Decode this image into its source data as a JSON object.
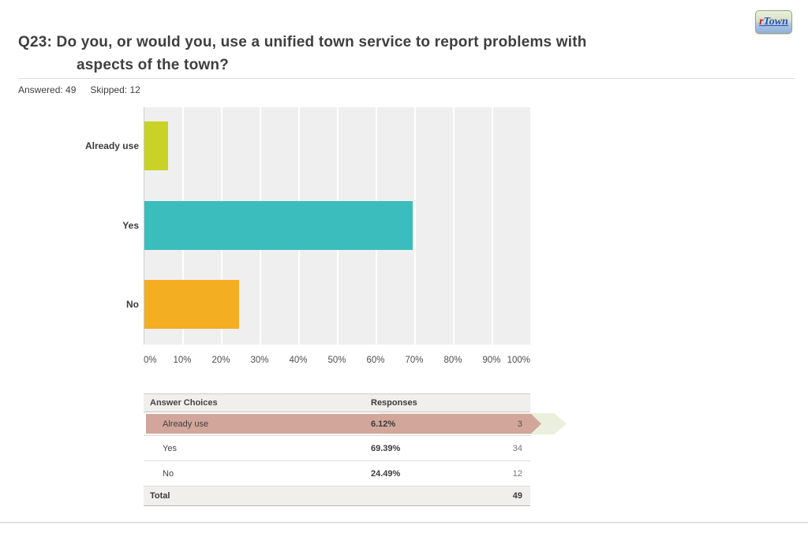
{
  "logo": {
    "r": "r",
    "town": "Town"
  },
  "question": {
    "line1": "Q23: Do you, or would you, use a unified town service to report problems with",
    "line2": "aspects of the town?"
  },
  "stats": {
    "answered_label": "Answered:",
    "answered_value": "49",
    "skipped_label": "Skipped:",
    "skipped_value": "12"
  },
  "chart_data": {
    "type": "bar",
    "orientation": "horizontal",
    "categories": [
      "Already use",
      "Yes",
      "No"
    ],
    "values": [
      6.12,
      69.39,
      24.49
    ],
    "colors": [
      "#c9d226",
      "#3bbdbd",
      "#f3ae22"
    ],
    "x_ticks": [
      "0%",
      "10%",
      "20%",
      "30%",
      "40%",
      "50%",
      "60%",
      "70%",
      "80%",
      "90%",
      "100%"
    ],
    "xlim": [
      0,
      100
    ],
    "grid": true,
    "plot_background": "#f0efef",
    "gridline_color": "#ffffff",
    "title": "",
    "xlabel": "",
    "ylabel": ""
  },
  "table": {
    "headers": [
      "Answer Choices",
      "Responses"
    ],
    "rows": [
      {
        "choice": "Already use",
        "percent": "6.12%",
        "count": "3",
        "highlighted": true
      },
      {
        "choice": "Yes",
        "percent": "69.39%",
        "count": "34",
        "highlighted": false
      },
      {
        "choice": "No",
        "percent": "24.49%",
        "count": "12",
        "highlighted": false
      }
    ],
    "total_label": "Total",
    "total_value": "49",
    "highlight_color": "#d2a69a",
    "highlight_arrow_color": "#eaf0dd"
  }
}
